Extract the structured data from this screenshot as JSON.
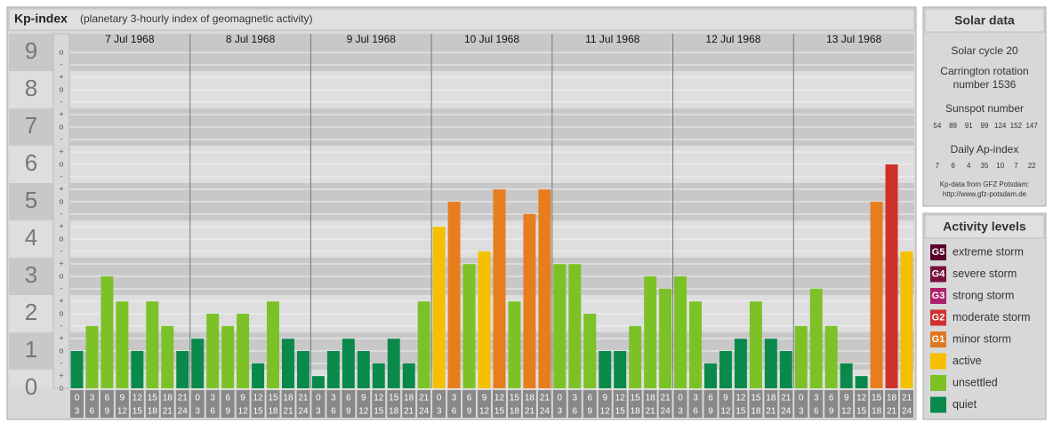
{
  "header": {
    "title": "Kp-index",
    "subtitle": "(planetary 3-hourly index of geomagnetic activity)"
  },
  "chart_data": {
    "type": "bar",
    "levels": [
      0,
      1,
      2,
      3,
      4,
      5,
      6,
      7,
      8,
      9
    ],
    "minor_labels": [
      "-",
      "o",
      "+"
    ],
    "ylim": [
      0,
      9.5
    ],
    "days": [
      "7 Jul 1968",
      "8 Jul 1968",
      "9 Jul 1968",
      "10 Jul 1968",
      "11 Jul 1968",
      "12 Jul 1968",
      "13 Jul 1968"
    ],
    "time_slots": [
      [
        "0",
        "3"
      ],
      [
        "3",
        "6"
      ],
      [
        "6",
        "9"
      ],
      [
        "9",
        "12"
      ],
      [
        "12",
        "15"
      ],
      [
        "15",
        "18"
      ],
      [
        "18",
        "21"
      ],
      [
        "21",
        "24"
      ]
    ],
    "values": [
      1,
      1.67,
      3,
      2.33,
      1,
      2.33,
      1.67,
      1,
      1.33,
      2,
      1.67,
      2,
      0.67,
      2.33,
      1.33,
      1,
      0.33,
      1,
      1.33,
      1,
      0.67,
      1.33,
      0.67,
      2.33,
      4.33,
      5,
      3.33,
      3.67,
      5.33,
      2.33,
      4.67,
      5.33,
      3.33,
      3.33,
      2,
      1,
      1,
      1.67,
      3,
      2.67,
      3,
      2.33,
      0.67,
      1,
      1.33,
      2.33,
      1.33,
      1,
      1.67,
      2.67,
      1.67,
      0.67,
      0.33,
      5,
      6,
      3.67
    ],
    "colors": [
      "#0a8a4a",
      "#7cc227",
      "#7cc227",
      "#7cc227",
      "#0a8a4a",
      "#7cc227",
      "#7cc227",
      "#0a8a4a",
      "#0a8a4a",
      "#7cc227",
      "#7cc227",
      "#7cc227",
      "#0a8a4a",
      "#7cc227",
      "#0a8a4a",
      "#0a8a4a",
      "#0a8a4a",
      "#0a8a4a",
      "#0a8a4a",
      "#0a8a4a",
      "#0a8a4a",
      "#0a8a4a",
      "#0a8a4a",
      "#7cc227",
      "#f5c000",
      "#e87d1e",
      "#7cc227",
      "#f5c000",
      "#e87d1e",
      "#7cc227",
      "#e87d1e",
      "#e87d1e",
      "#7cc227",
      "#7cc227",
      "#7cc227",
      "#0a8a4a",
      "#0a8a4a",
      "#7cc227",
      "#7cc227",
      "#7cc227",
      "#7cc227",
      "#7cc227",
      "#0a8a4a",
      "#0a8a4a",
      "#0a8a4a",
      "#7cc227",
      "#0a8a4a",
      "#0a8a4a",
      "#7cc227",
      "#7cc227",
      "#7cc227",
      "#0a8a4a",
      "#0a8a4a",
      "#e87d1e",
      "#d0302a",
      "#f5c000"
    ]
  },
  "solar_data": {
    "title": "Solar data",
    "cycle": "Solar cycle 20",
    "carrington": [
      "Carrington rotation",
      "number 1536"
    ],
    "sunspot_title": "Sunspot number",
    "sunspot": [
      54,
      89,
      91,
      99,
      124,
      152,
      147
    ],
    "ap_title": "Daily Ap-index",
    "ap": [
      7,
      6,
      4,
      35,
      10,
      7,
      22
    ],
    "source": [
      "Kp-data from GFZ Potsdam:",
      "http://www.gfz-potsdam.de"
    ]
  },
  "activity_levels": {
    "title": "Activity levels",
    "items": [
      {
        "code": "G5",
        "label": "extreme storm",
        "color": "#5a0028"
      },
      {
        "code": "G4",
        "label": "severe storm",
        "color": "#7a1040"
      },
      {
        "code": "G3",
        "label": "strong storm",
        "color": "#b0206a"
      },
      {
        "code": "G2",
        "label": "moderate storm",
        "color": "#d03030"
      },
      {
        "code": "G1",
        "label": "minor storm",
        "color": "#e07820"
      },
      {
        "code": "",
        "label": "active",
        "color": "#f5c000"
      },
      {
        "code": "",
        "label": "unsettled",
        "color": "#7cc227"
      },
      {
        "code": "",
        "label": "quiet",
        "color": "#0a8a4a"
      }
    ]
  }
}
